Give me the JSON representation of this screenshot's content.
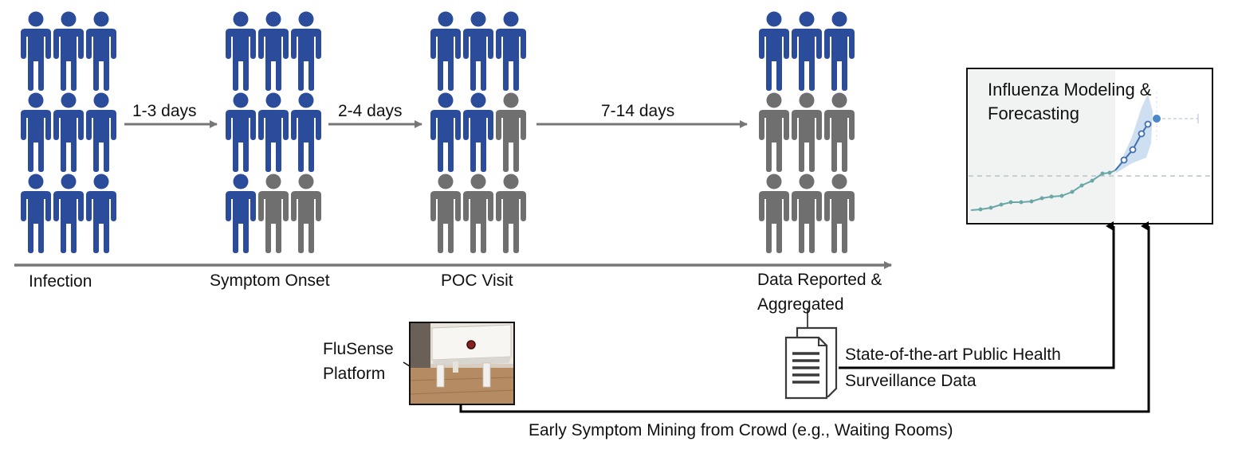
{
  "stages": [
    {
      "label": "Infection",
      "infected": 9
    },
    {
      "label": "Symptom Onset",
      "infected": 7
    },
    {
      "label": "POC Visit",
      "infected": 5
    },
    {
      "label": "Data Reported &",
      "label_line2": "Aggregated",
      "infected": 3
    }
  ],
  "intervals": [
    "1-3 days",
    "2-4 days",
    "7-14 days"
  ],
  "flusense": {
    "line1": "FluSense",
    "line2": "Platform"
  },
  "surveillance": {
    "line1": "State-of-the-art Public Health",
    "line2": "Surveillance Data"
  },
  "crowd_label": "Early Symptom Mining from Crowd (e.g., Waiting Rooms)",
  "forecast_panel": {
    "title_line1": "Influenza Modeling &",
    "title_line2": "Forecasting"
  },
  "colors": {
    "infected": "#2b4b9b",
    "not_infected": "#6f6f6f",
    "arrow": "#777777",
    "trend": "#6aa8a8",
    "forecast": "#4a88c6",
    "forecast_band": "#c9dcf0"
  },
  "icons": [
    "person-icon",
    "document-icon",
    "device-photo"
  ]
}
